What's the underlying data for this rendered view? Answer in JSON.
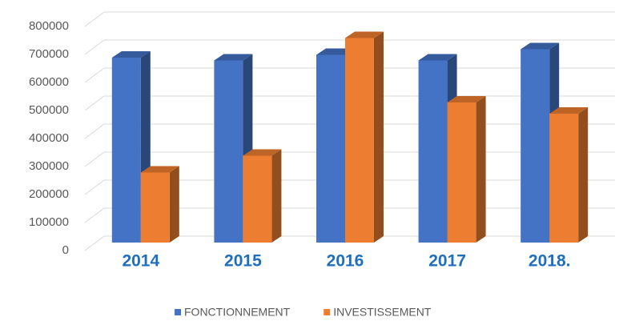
{
  "chart_data": {
    "type": "bar3d",
    "categories": [
      "2014",
      "2015",
      "2016",
      "2017",
      "2018."
    ],
    "series": [
      {
        "name": "FONCTIONNEMENT",
        "color": "#4472c4",
        "values": [
          660000,
          650000,
          670000,
          650000,
          690000
        ]
      },
      {
        "name": "INVESTISSEMENT",
        "color": "#ed7d31",
        "values": [
          250000,
          310000,
          730000,
          500000,
          460000
        ]
      }
    ],
    "ylim": [
      0,
      800000
    ],
    "yticks": [
      0,
      100000,
      200000,
      300000,
      400000,
      500000,
      600000,
      700000,
      800000
    ],
    "grid": true,
    "legend": "bottom"
  }
}
